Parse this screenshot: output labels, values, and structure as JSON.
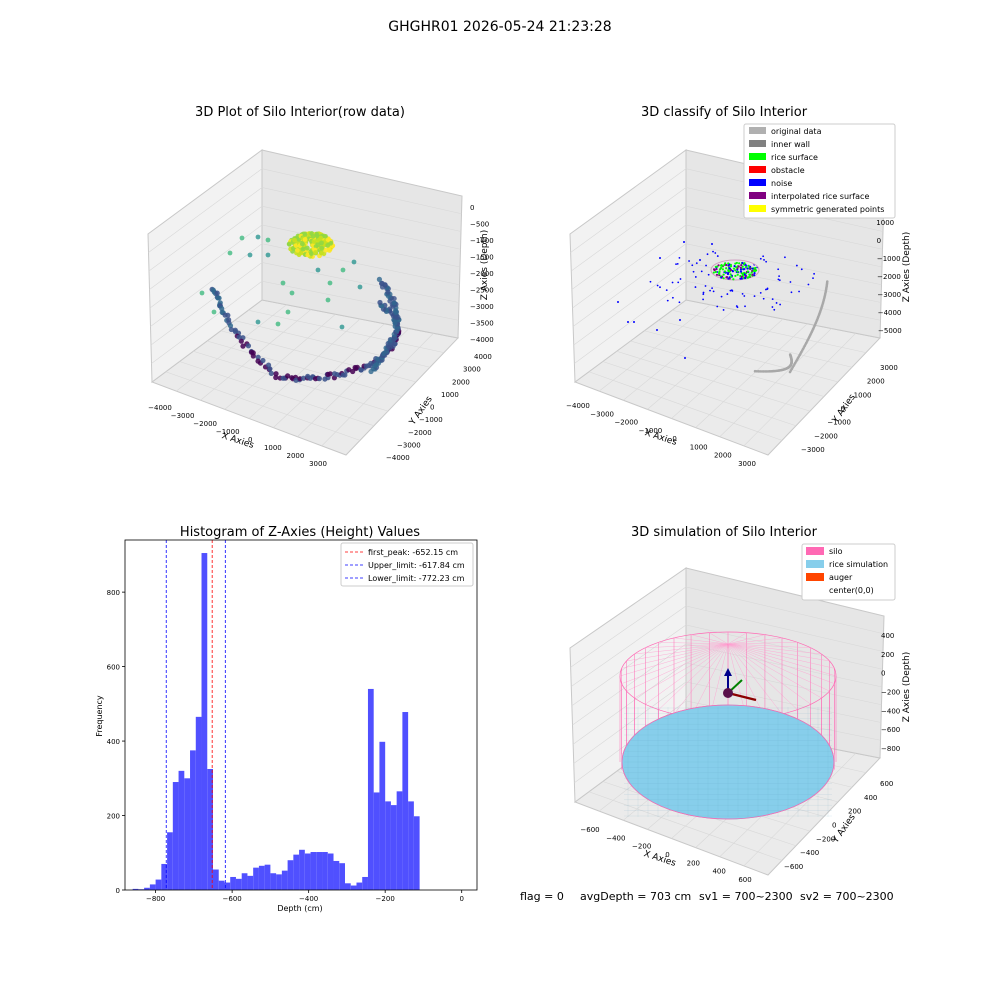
{
  "suptitle": "GHGHR01 2026-05-24 21:23:28",
  "footer": {
    "flag": "flag = 0",
    "avg_depth": "avgDepth = 703 cm",
    "sv1": "sv1 = 700~2300",
    "sv2": "sv2 = 700~2300"
  },
  "chart_data": [
    {
      "type": "scatter",
      "projection": "3d",
      "title": "3D Plot of Silo Interior(row data)",
      "xlabel": "X Axies",
      "ylabel": "Y Axies",
      "zlabel": "Z Axies (Depth)",
      "xticks": [
        "−4000",
        "−3000",
        "−2000",
        "−1000",
        "0",
        "1000",
        "2000",
        "3000"
      ],
      "yticks": [
        "−4000",
        "−3000",
        "−2000",
        "−1000",
        "0",
        "1000",
        "2000",
        "3000",
        "4000"
      ],
      "zticks": [
        "0",
        "−500",
        "−1000",
        "−1500",
        "−2000",
        "−2500",
        "−3000",
        "−3500",
        "−4000"
      ],
      "colormap": "viridis"
    },
    {
      "type": "scatter",
      "projection": "3d",
      "title": "3D classify of Silo Interior",
      "xlabel": "X Axies",
      "ylabel": "Y Axies",
      "zlabel": "Z Axies (Depth)",
      "xticks": [
        "−4000",
        "−3000",
        "−2000",
        "−1000",
        "0",
        "1000",
        "2000",
        "3000"
      ],
      "yticks": [
        "−3000",
        "−2000",
        "−1000",
        "0",
        "1000",
        "2000",
        "3000"
      ],
      "zticks": [
        "2000",
        "1000",
        "0",
        "−1000",
        "−2000",
        "−3000",
        "−4000",
        "−5000"
      ],
      "legend_position": "top-right",
      "legend": [
        {
          "label": "original data",
          "color": "#b0b0b0"
        },
        {
          "label": "inner wall",
          "color": "#808080"
        },
        {
          "label": "rice surface",
          "color": "#00ff00"
        },
        {
          "label": "obstacle",
          "color": "#ff0000"
        },
        {
          "label": "noise",
          "color": "#0000ff"
        },
        {
          "label": "interpolated rice surface",
          "color": "#800080"
        },
        {
          "label": "symmetric generated points",
          "color": "#ffff00"
        }
      ]
    },
    {
      "type": "bar",
      "title": "Histogram of Z-Axies (Height) Values",
      "xlabel": "Depth (cm)",
      "ylabel": "Frequency",
      "bar_color": "#5050ff",
      "xlim": [
        -880,
        40
      ],
      "ylim": [
        0,
        940
      ],
      "xticks": [
        "−800",
        "−600",
        "−400",
        "−200",
        "0"
      ],
      "xtick_values": [
        -800,
        -600,
        -400,
        -200,
        0
      ],
      "yticks": [
        "0",
        "200",
        "400",
        "600",
        "800"
      ],
      "ytick_values": [
        0,
        200,
        400,
        600,
        800
      ],
      "bin_start": -860,
      "bin_width": 15,
      "values": [
        3,
        2,
        6,
        15,
        28,
        70,
        155,
        290,
        320,
        300,
        375,
        465,
        905,
        325,
        55,
        25,
        20,
        35,
        30,
        45,
        38,
        60,
        65,
        68,
        45,
        42,
        52,
        80,
        95,
        108,
        98,
        102,
        102,
        102,
        98,
        78,
        72,
        18,
        12,
        20,
        35,
        540,
        262,
        398,
        238,
        228,
        265,
        478,
        238,
        198
      ],
      "lines": [
        {
          "label": "first_peak: -652.15 cm",
          "x": -652.15,
          "color": "#ff0000"
        },
        {
          "label": "Upper_limit: -617.84 cm",
          "x": -617.84,
          "color": "#0000ff"
        },
        {
          "label": "Lower_limit: -772.23 cm",
          "x": -772.23,
          "color": "#0000ff"
        }
      ],
      "legend_position": "top-right"
    },
    {
      "type": "scatter",
      "projection": "3d",
      "title": "3D simulation of Silo Interior",
      "xlabel": "X Axies",
      "ylabel": "Y Axies",
      "zlabel": "Z Axies (Depth)",
      "xticks": [
        "−600",
        "−400",
        "−200",
        "0",
        "200",
        "400",
        "600"
      ],
      "yticks": [
        "−600",
        "−400",
        "−200",
        "0",
        "200",
        "400",
        "600"
      ],
      "zticks": [
        "400",
        "200",
        "0",
        "−200",
        "−400",
        "−600",
        "−800"
      ],
      "legend_position": "top-right",
      "legend": [
        {
          "label": "silo",
          "color": "#ff69b4"
        },
        {
          "label": "rice simulation",
          "color": "#87ceeb"
        },
        {
          "label": "auger",
          "color": "#ff4500"
        },
        {
          "label": "center(0,0)",
          "color": ""
        }
      ]
    }
  ]
}
